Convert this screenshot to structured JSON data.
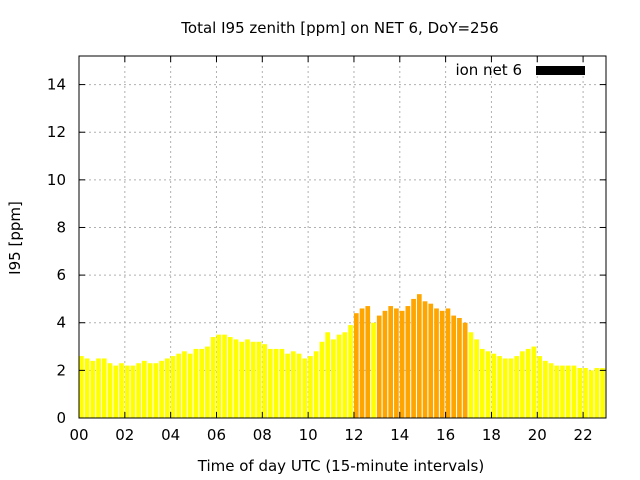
{
  "chart_data": {
    "type": "bar",
    "title": "Total I95 zenith [ppm] on NET 6, DoY=256",
    "xlabel": "Time of day UTC (15-minute intervals)",
    "ylabel": "I95 [ppm]",
    "xlim": [
      0,
      23
    ],
    "ylim": [
      0,
      15.2
    ],
    "grid": true,
    "legend_position": "top-right",
    "x_ticks": [
      {
        "value": 0,
        "label": "00"
      },
      {
        "value": 2,
        "label": "02"
      },
      {
        "value": 4,
        "label": "04"
      },
      {
        "value": 6,
        "label": "06"
      },
      {
        "value": 8,
        "label": "08"
      },
      {
        "value": 10,
        "label": "10"
      },
      {
        "value": 12,
        "label": "12"
      },
      {
        "value": 14,
        "label": "14"
      },
      {
        "value": 16,
        "label": "16"
      },
      {
        "value": 18,
        "label": "18"
      },
      {
        "value": 20,
        "label": "20"
      },
      {
        "value": 22,
        "label": "22"
      }
    ],
    "y_ticks": [
      {
        "value": 0,
        "label": "0"
      },
      {
        "value": 2,
        "label": "2"
      },
      {
        "value": 4,
        "label": "4"
      },
      {
        "value": 6,
        "label": "6"
      },
      {
        "value": 8,
        "label": "8"
      },
      {
        "value": 10,
        "label": "10"
      },
      {
        "value": 12,
        "label": "12"
      },
      {
        "value": 14,
        "label": "14"
      }
    ],
    "colors": {
      "low": "#ffff00",
      "high": "#ffa500",
      "legend_swatch": "#000000"
    },
    "series": [
      {
        "name": "ion net 6",
        "interval_hours": 0.25,
        "values": [
          2.6,
          2.5,
          2.4,
          2.5,
          2.5,
          2.3,
          2.2,
          2.3,
          2.2,
          2.2,
          2.3,
          2.4,
          2.3,
          2.3,
          2.4,
          2.5,
          2.6,
          2.7,
          2.8,
          2.7,
          2.9,
          2.9,
          3.0,
          3.4,
          3.5,
          3.5,
          3.4,
          3.3,
          3.2,
          3.3,
          3.2,
          3.2,
          3.1,
          2.9,
          2.9,
          2.9,
          2.7,
          2.8,
          2.7,
          2.5,
          2.6,
          2.8,
          3.2,
          3.6,
          3.3,
          3.5,
          3.6,
          3.9,
          4.4,
          4.6,
          4.7,
          4.0,
          4.3,
          4.5,
          4.7,
          4.6,
          4.5,
          4.7,
          5.0,
          5.2,
          4.9,
          4.8,
          4.6,
          4.5,
          4.6,
          4.3,
          4.2,
          4.0,
          3.6,
          3.3,
          2.9,
          2.8,
          2.7,
          2.6,
          2.5,
          2.5,
          2.6,
          2.8,
          2.9,
          3.0,
          2.6,
          2.4,
          2.3,
          2.2,
          2.2,
          2.2,
          2.2,
          2.1,
          2.1,
          2.0,
          2.1,
          2.1,
          2.0
        ],
        "colors": [
          "low",
          "low",
          "low",
          "low",
          "low",
          "low",
          "low",
          "low",
          "low",
          "low",
          "low",
          "low",
          "low",
          "low",
          "low",
          "low",
          "low",
          "low",
          "low",
          "low",
          "low",
          "low",
          "low",
          "low",
          "low",
          "low",
          "low",
          "low",
          "low",
          "low",
          "low",
          "low",
          "low",
          "low",
          "low",
          "low",
          "low",
          "low",
          "low",
          "low",
          "low",
          "low",
          "low",
          "low",
          "low",
          "low",
          "low",
          "low",
          "high",
          "high",
          "high",
          "low",
          "high",
          "high",
          "high",
          "high",
          "high",
          "high",
          "high",
          "high",
          "high",
          "high",
          "high",
          "high",
          "high",
          "high",
          "high",
          "high",
          "low",
          "low",
          "low",
          "low",
          "low",
          "low",
          "low",
          "low",
          "low",
          "low",
          "low",
          "low",
          "low",
          "low",
          "low",
          "low",
          "low",
          "low",
          "low",
          "low",
          "low",
          "low",
          "low",
          "low",
          "low"
        ]
      }
    ]
  }
}
